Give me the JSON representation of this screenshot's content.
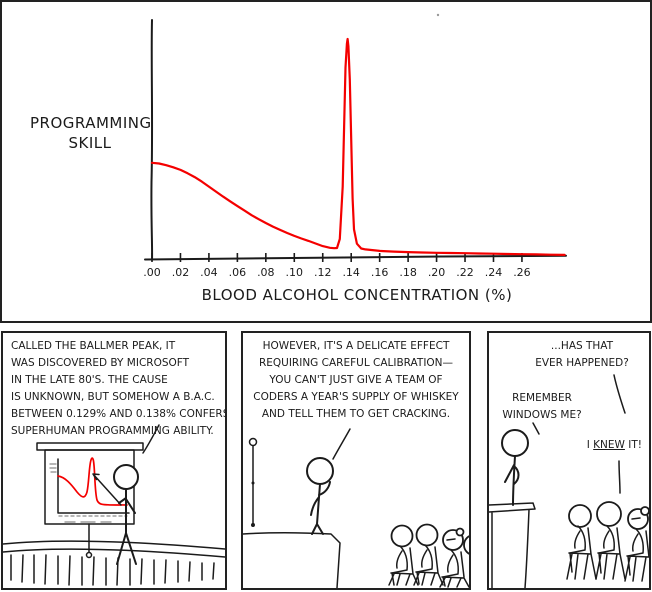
{
  "colors": {
    "ink": "#1b1b1b",
    "curve_red": "#f40000",
    "paper": "#ffffff"
  },
  "chart_data": {
    "type": "line",
    "title": "",
    "xlabel": "BLOOD ALCOHOL CONCENTRATION (%)",
    "ylabel": "PROGRAMMING SKILL",
    "ylabel_lines": [
      "PROGRAMMING",
      "SKILL"
    ],
    "xtick_labels": [
      ".00",
      ".02",
      ".04",
      ".06",
      ".08",
      ".10",
      ".12",
      ".14",
      ".16",
      ".18",
      ".20",
      ".22",
      ".24",
      ".26"
    ],
    "xlim": [
      0,
      0.29
    ],
    "ylim": [
      0,
      1
    ],
    "grid": false,
    "legend": "none",
    "series": [
      {
        "name": "programming-skill-vs-bac",
        "color": "#f40000",
        "x": [
          0.0,
          0.005,
          0.01,
          0.015,
          0.02,
          0.025,
          0.03,
          0.035,
          0.04,
          0.045,
          0.05,
          0.055,
          0.06,
          0.065,
          0.07,
          0.075,
          0.08,
          0.085,
          0.09,
          0.095,
          0.1,
          0.105,
          0.11,
          0.115,
          0.12,
          0.125,
          0.128,
          0.13,
          0.132,
          0.134,
          0.135,
          0.136,
          0.137,
          0.1375,
          0.138,
          0.139,
          0.14,
          0.141,
          0.142,
          0.144,
          0.147,
          0.15,
          0.155,
          0.16,
          0.17,
          0.18,
          0.19,
          0.2,
          0.21,
          0.22,
          0.23,
          0.24,
          0.25,
          0.26,
          0.27,
          0.28,
          0.29
        ],
        "y": [
          0.4,
          0.397,
          0.39,
          0.381,
          0.37,
          0.356,
          0.34,
          0.321,
          0.3,
          0.279,
          0.258,
          0.238,
          0.218,
          0.199,
          0.18,
          0.163,
          0.147,
          0.132,
          0.118,
          0.105,
          0.093,
          0.082,
          0.072,
          0.061,
          0.05,
          0.043,
          0.041,
          0.042,
          0.08,
          0.3,
          0.55,
          0.8,
          0.9,
          0.92,
          0.89,
          0.75,
          0.5,
          0.25,
          0.12,
          0.06,
          0.04,
          0.036,
          0.033,
          0.03,
          0.027,
          0.025,
          0.023,
          0.022,
          0.021,
          0.02,
          0.019,
          0.018,
          0.017,
          0.016,
          0.015,
          0.014,
          0.013
        ]
      }
    ]
  },
  "panel1": {
    "caption_lines": [
      "CALLED THE BALLMER PEAK, IT",
      "WAS DISCOVERED BY MICROSOFT",
      "IN THE LATE 80'S. THE CAUSE",
      "IS UNKNOWN, BUT SOMEHOW A B.A.C.",
      "BETWEEN 0.129% AND 0.138% CONFERS",
      "SUPERHUMAN PROGRAMMING ABILITY."
    ]
  },
  "panel2": {
    "caption_lines": [
      "HOWEVER, IT'S A DELICATE EFFECT",
      "REQUIRING CAREFUL CALIBRATION—",
      "YOU CAN'T JUST GIVE A TEAM OF",
      "CODERS A YEAR'S SUPPLY OF WHISKEY",
      "AND TELL THEM TO GET CRACKING."
    ]
  },
  "panel3": {
    "speech1_lines": [
      "...HAS THAT",
      "EVER HAPPENED?"
    ],
    "speech2_lines": [
      "REMEMBER",
      "WINDOWS ME?"
    ],
    "speech3": {
      "pre": "I ",
      "underlined": "KNEW",
      "post": " IT!"
    }
  }
}
